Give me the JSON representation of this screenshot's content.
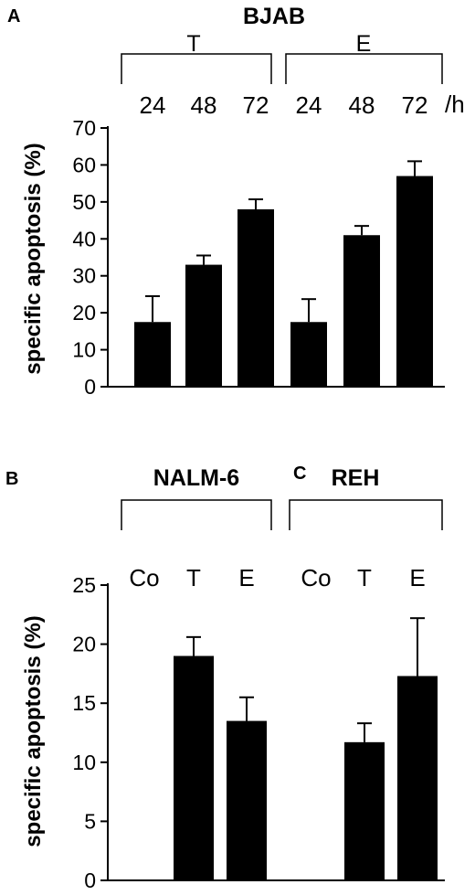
{
  "panels": {
    "a": {
      "letter": "A",
      "title": "BJAB",
      "groups": [
        "T",
        "E"
      ],
      "unit": "/h",
      "ylabel": "specific apoptosis (%)"
    },
    "b": {
      "letter": "B",
      "title": "NALM-6"
    },
    "c": {
      "letter": "C",
      "title": "REH"
    },
    "bc_ylabel": "specific apoptosis (%)"
  },
  "colors": {
    "bar": "#000000",
    "axis": "#000000",
    "background": "#ffffff"
  },
  "chart_data": [
    {
      "id": "A",
      "type": "bar",
      "title": "BJAB",
      "ylabel": "specific apoptosis (%)",
      "ylim": [
        0,
        70
      ],
      "yticks": [
        0,
        10,
        20,
        30,
        40,
        50,
        60,
        70
      ],
      "categories": [
        "24",
        "48",
        "72",
        "24",
        "48",
        "72"
      ],
      "groups": [
        {
          "label": "T",
          "categories": [
            0,
            1,
            2
          ]
        },
        {
          "label": "E",
          "categories": [
            3,
            4,
            5
          ]
        }
      ],
      "values": [
        17.5,
        33,
        48,
        17.5,
        41,
        57
      ],
      "errors": [
        7,
        2.5,
        2.7,
        6.2,
        2.5,
        4
      ],
      "grid": false
    },
    {
      "id": "B",
      "type": "bar",
      "title": "NALM-6",
      "ylabel": "specific apoptosis (%)",
      "ylim": [
        0,
        25
      ],
      "yticks": [
        0,
        5,
        10,
        15,
        20,
        25
      ],
      "categories": [
        "Co",
        "T",
        "E"
      ],
      "values": [
        0,
        19,
        13.5
      ],
      "errors": [
        0,
        1.6,
        2
      ],
      "grid": false
    },
    {
      "id": "C",
      "type": "bar",
      "title": "REH",
      "ylim": [
        0,
        25
      ],
      "categories": [
        "Co",
        "T",
        "E"
      ],
      "values": [
        0,
        11.7,
        17.3
      ],
      "errors": [
        0,
        1.6,
        4.9
      ],
      "grid": false
    }
  ]
}
